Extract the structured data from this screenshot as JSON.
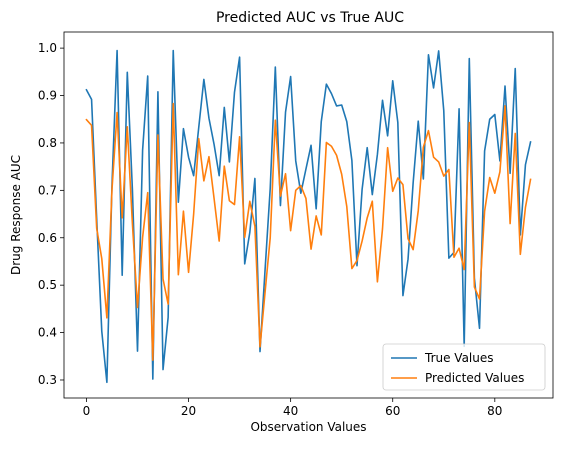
{
  "chart_data": {
    "type": "line",
    "title": "Predicted AUC vs True AUC",
    "xlabel": "Observation Values",
    "ylabel": "Drug Response AUC",
    "xlim": [
      -4.4,
      91.4
    ],
    "ylim": [
      0.262,
      1.034
    ],
    "xticks": [
      0,
      20,
      40,
      60,
      80
    ],
    "yticks": [
      0.3,
      0.4,
      0.5,
      0.6,
      0.7,
      0.8,
      0.9,
      1.0
    ],
    "ytick_labels": [
      "0.3",
      "0.4",
      "0.5",
      "0.6",
      "0.7",
      "0.8",
      "0.9",
      "1.0"
    ],
    "grid": false,
    "legend_position": "lower-right",
    "series": [
      {
        "name": "True Values",
        "color": "#1f77b4",
        "values": [
          0.912,
          0.892,
          0.641,
          0.403,
          0.295,
          0.712,
          0.995,
          0.521,
          0.949,
          0.702,
          0.361,
          0.785,
          0.941,
          0.302,
          0.908,
          0.322,
          0.432,
          0.995,
          0.675,
          0.83,
          0.77,
          0.731,
          0.833,
          0.934,
          0.852,
          0.797,
          0.731,
          0.875,
          0.76,
          0.907,
          0.981,
          0.545,
          0.611,
          0.725,
          0.36,
          0.534,
          0.704,
          0.96,
          0.668,
          0.865,
          0.94,
          0.762,
          0.694,
          0.745,
          0.795,
          0.661,
          0.845,
          0.924,
          0.904,
          0.878,
          0.88,
          0.845,
          0.763,
          0.541,
          0.702,
          0.79,
          0.691,
          0.776,
          0.89,
          0.815,
          0.931,
          0.843,
          0.478,
          0.555,
          0.716,
          0.846,
          0.724,
          0.986,
          0.916,
          0.994,
          0.868,
          0.557,
          0.569,
          0.872,
          0.371,
          0.978,
          0.515,
          0.409,
          0.783,
          0.85,
          0.86,
          0.762,
          0.92,
          0.736,
          0.957,
          0.606,
          0.754,
          0.802
        ]
      },
      {
        "name": "Predicted Values",
        "color": "#ff7f0e",
        "values": [
          0.849,
          0.837,
          0.62,
          0.556,
          0.431,
          0.702,
          0.864,
          0.642,
          0.834,
          0.63,
          0.453,
          0.601,
          0.695,
          0.342,
          0.817,
          0.513,
          0.46,
          0.883,
          0.522,
          0.656,
          0.527,
          0.65,
          0.809,
          0.72,
          0.771,
          0.683,
          0.593,
          0.751,
          0.678,
          0.67,
          0.813,
          0.601,
          0.677,
          0.624,
          0.37,
          0.486,
          0.6,
          0.848,
          0.688,
          0.735,
          0.615,
          0.7,
          0.71,
          0.683,
          0.576,
          0.646,
          0.606,
          0.801,
          0.793,
          0.774,
          0.734,
          0.666,
          0.535,
          0.552,
          0.593,
          0.642,
          0.677,
          0.507,
          0.619,
          0.79,
          0.698,
          0.726,
          0.712,
          0.598,
          0.575,
          0.657,
          0.791,
          0.826,
          0.77,
          0.76,
          0.73,
          0.744,
          0.559,
          0.578,
          0.533,
          0.843,
          0.496,
          0.471,
          0.656,
          0.727,
          0.694,
          0.739,
          0.878,
          0.63,
          0.82,
          0.565,
          0.664,
          0.723
        ]
      }
    ]
  }
}
